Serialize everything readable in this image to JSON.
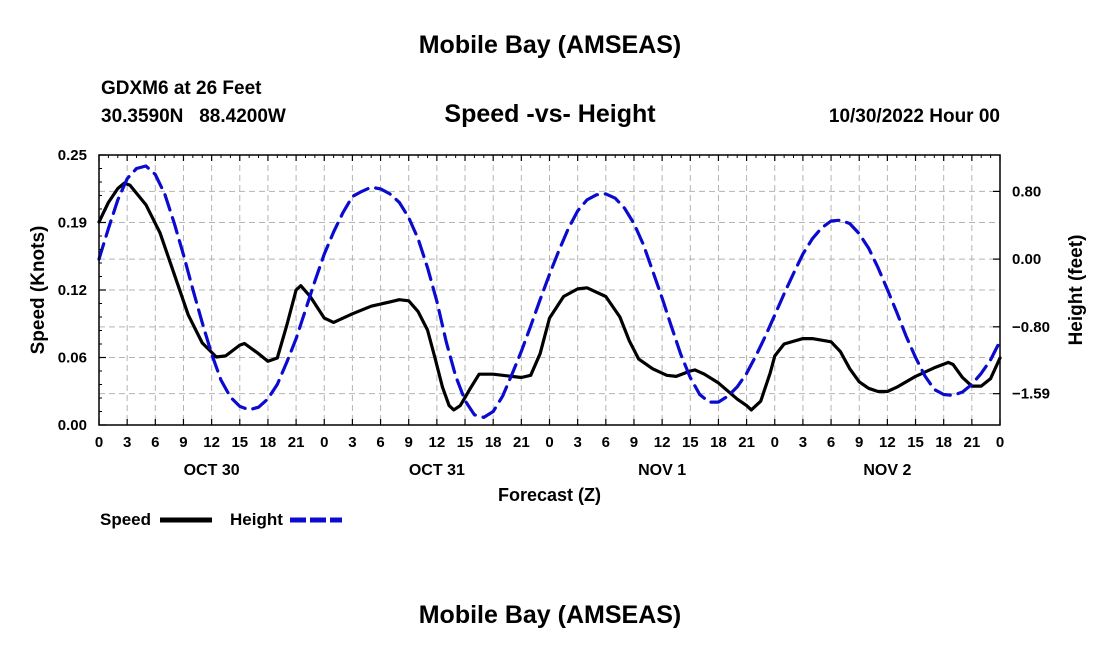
{
  "header": {
    "title": "Mobile Bay (AMSEAS)",
    "station": "GDXM6 at 26 Feet",
    "coords": "30.3590N   88.4200W",
    "subtitle": "Speed -vs- Height",
    "date": "10/30/2022 Hour 00"
  },
  "footer": {
    "title": "Mobile Bay (AMSEAS)"
  },
  "chart_data": {
    "type": "line",
    "title": "Speed -vs- Height",
    "xlabel": "Forecast (Z)",
    "ylabel": "Speed (Knots)",
    "ylabel_right": "Height (feet)",
    "xlim": [
      0,
      96
    ],
    "ylim": [
      0,
      0.25
    ],
    "ylim_right": [
      -1.96,
      1.23
    ],
    "grid": true,
    "x_ticks": [
      0,
      3,
      6,
      9,
      12,
      15,
      18,
      21,
      24,
      27,
      30,
      33,
      36,
      39,
      42,
      45,
      48,
      51,
      54,
      57,
      60,
      63,
      66,
      69,
      72,
      75,
      78,
      81,
      84,
      87,
      90,
      93,
      96
    ],
    "x_tick_labels": [
      "0",
      "3",
      "6",
      "9",
      "12",
      "15",
      "18",
      "21",
      "0",
      "3",
      "6",
      "9",
      "12",
      "15",
      "18",
      "21",
      "0",
      "3",
      "6",
      "9",
      "12",
      "15",
      "18",
      "21",
      "0",
      "3",
      "6",
      "9",
      "12",
      "15",
      "18",
      "21",
      "0"
    ],
    "day_labels": [
      {
        "x": 12,
        "label": "OCT 30"
      },
      {
        "x": 36,
        "label": "OCT 31"
      },
      {
        "x": 60,
        "label": "NOV 1"
      },
      {
        "x": 84,
        "label": "NOV 2"
      }
    ],
    "y_ticks_left": [
      {
        "value": 0,
        "label": "0.00"
      },
      {
        "value": 0.0625,
        "label": "0.06"
      },
      {
        "value": 0.125,
        "label": "0.12"
      },
      {
        "value": 0.1875,
        "label": "0.19"
      },
      {
        "value": 0.25,
        "label": "0.25"
      }
    ],
    "y_ticks_right": [
      {
        "value": 0.8,
        "label": "0.80"
      },
      {
        "value": 0.0,
        "label": "0.00"
      },
      {
        "value": -0.8,
        "label": "−0.80"
      },
      {
        "value": -1.59,
        "label": "−1.59"
      }
    ],
    "legend": {
      "placement": "bottom-left",
      "speed_label": "Speed",
      "height_label": "Height"
    },
    "series": [
      {
        "name": "Speed",
        "axis": "left",
        "color": "#000000",
        "dash": "solid",
        "points": [
          [
            0,
            0.188
          ],
          [
            1,
            0.206
          ],
          [
            2,
            0.219
          ],
          [
            2.7,
            0.224
          ],
          [
            3.3,
            0.222
          ],
          [
            5,
            0.204
          ],
          [
            6.5,
            0.178
          ],
          [
            8,
            0.14
          ],
          [
            9.5,
            0.102
          ],
          [
            11,
            0.076
          ],
          [
            12.5,
            0.063
          ],
          [
            13.5,
            0.064
          ],
          [
            15,
            0.074
          ],
          [
            15.5,
            0.0755
          ],
          [
            17,
            0.066
          ],
          [
            18,
            0.059
          ],
          [
            19,
            0.062
          ],
          [
            20,
            0.092
          ],
          [
            21,
            0.125
          ],
          [
            21.5,
            0.129
          ],
          [
            22.5,
            0.119
          ],
          [
            24,
            0.099
          ],
          [
            25,
            0.095
          ],
          [
            27,
            0.103
          ],
          [
            29,
            0.11
          ],
          [
            31,
            0.114
          ],
          [
            32,
            0.116
          ],
          [
            33,
            0.115
          ],
          [
            34,
            0.105
          ],
          [
            35,
            0.088
          ],
          [
            35.8,
            0.062
          ],
          [
            36.6,
            0.035
          ],
          [
            37.3,
            0.018
          ],
          [
            37.8,
            0.014
          ],
          [
            38.5,
            0.018
          ],
          [
            39.5,
            0.033
          ],
          [
            40.5,
            0.047
          ],
          [
            42,
            0.047
          ],
          [
            44,
            0.045
          ],
          [
            45,
            0.044
          ],
          [
            46,
            0.046
          ],
          [
            47,
            0.066
          ],
          [
            48,
            0.099
          ],
          [
            49.5,
            0.119
          ],
          [
            51,
            0.126
          ],
          [
            52,
            0.127
          ],
          [
            54,
            0.119
          ],
          [
            55.5,
            0.1
          ],
          [
            56.5,
            0.078
          ],
          [
            57.5,
            0.061
          ],
          [
            59,
            0.052
          ],
          [
            60.5,
            0.046
          ],
          [
            61.5,
            0.045
          ],
          [
            63,
            0.05
          ],
          [
            63.5,
            0.051
          ],
          [
            64.5,
            0.047
          ],
          [
            66,
            0.039
          ],
          [
            68,
            0.024
          ],
          [
            69,
            0.018
          ],
          [
            69.5,
            0.014
          ],
          [
            70.5,
            0.022
          ],
          [
            71.5,
            0.048
          ],
          [
            72,
            0.064
          ],
          [
            73,
            0.075
          ],
          [
            75,
            0.08
          ],
          [
            76,
            0.08
          ],
          [
            78,
            0.077
          ],
          [
            79,
            0.068
          ],
          [
            80,
            0.052
          ],
          [
            81,
            0.04
          ],
          [
            82,
            0.034
          ],
          [
            83,
            0.031
          ],
          [
            84,
            0.031
          ],
          [
            85,
            0.035
          ],
          [
            87,
            0.045
          ],
          [
            89,
            0.053
          ],
          [
            90.5,
            0.058
          ],
          [
            91,
            0.056
          ],
          [
            92,
            0.044
          ],
          [
            93,
            0.036
          ],
          [
            94,
            0.036
          ],
          [
            95,
            0.043
          ],
          [
            96,
            0.062
          ]
        ]
      },
      {
        "name": "Height",
        "axis": "right",
        "color": "#0b0bd0",
        "dash": "dashed",
        "points": [
          [
            0,
            0.0
          ],
          [
            1,
            0.36
          ],
          [
            2,
            0.7
          ],
          [
            3,
            0.95
          ],
          [
            4,
            1.07
          ],
          [
            5,
            1.1
          ],
          [
            6,
            1.0
          ],
          [
            7,
            0.77
          ],
          [
            8,
            0.43
          ],
          [
            9,
            0.05
          ],
          [
            10,
            -0.36
          ],
          [
            11,
            -0.75
          ],
          [
            12,
            -1.12
          ],
          [
            13,
            -1.43
          ],
          [
            14,
            -1.63
          ],
          [
            15,
            -1.74
          ],
          [
            16,
            -1.78
          ],
          [
            17,
            -1.75
          ],
          [
            18,
            -1.65
          ],
          [
            19,
            -1.48
          ],
          [
            20,
            -1.22
          ],
          [
            21,
            -0.94
          ],
          [
            22,
            -0.6
          ],
          [
            23,
            -0.26
          ],
          [
            24,
            0.06
          ],
          [
            25,
            0.32
          ],
          [
            26,
            0.55
          ],
          [
            27,
            0.74
          ],
          [
            28,
            0.8
          ],
          [
            29,
            0.85
          ],
          [
            30,
            0.83
          ],
          [
            31,
            0.77
          ],
          [
            32,
            0.67
          ],
          [
            33,
            0.49
          ],
          [
            34,
            0.24
          ],
          [
            35,
            -0.1
          ],
          [
            36,
            -0.5
          ],
          [
            37,
            -0.98
          ],
          [
            38,
            -1.38
          ],
          [
            39,
            -1.67
          ],
          [
            40,
            -1.84
          ],
          [
            41,
            -1.87
          ],
          [
            42,
            -1.8
          ],
          [
            43,
            -1.62
          ],
          [
            44,
            -1.36
          ],
          [
            45,
            -1.09
          ],
          [
            46,
            -0.79
          ],
          [
            47,
            -0.48
          ],
          [
            48,
            -0.18
          ],
          [
            49,
            0.1
          ],
          [
            50,
            0.36
          ],
          [
            51,
            0.57
          ],
          [
            52,
            0.7
          ],
          [
            53,
            0.76
          ],
          [
            54,
            0.77
          ],
          [
            55,
            0.72
          ],
          [
            56,
            0.6
          ],
          [
            57,
            0.42
          ],
          [
            58,
            0.17
          ],
          [
            59,
            -0.14
          ],
          [
            60,
            -0.46
          ],
          [
            61,
            -0.8
          ],
          [
            62,
            -1.13
          ],
          [
            63,
            -1.4
          ],
          [
            64,
            -1.6
          ],
          [
            65,
            -1.69
          ],
          [
            66,
            -1.69
          ],
          [
            67,
            -1.62
          ],
          [
            68,
            -1.51
          ],
          [
            69,
            -1.35
          ],
          [
            70,
            -1.14
          ],
          [
            71,
            -0.91
          ],
          [
            72,
            -0.66
          ],
          [
            73,
            -0.41
          ],
          [
            74,
            -0.17
          ],
          [
            75,
            0.06
          ],
          [
            76,
            0.24
          ],
          [
            77,
            0.37
          ],
          [
            78,
            0.45
          ],
          [
            79,
            0.46
          ],
          [
            80,
            0.42
          ],
          [
            81,
            0.3
          ],
          [
            82,
            0.13
          ],
          [
            83,
            -0.1
          ],
          [
            84,
            -0.36
          ],
          [
            85,
            -0.63
          ],
          [
            86,
            -0.91
          ],
          [
            87,
            -1.16
          ],
          [
            88,
            -1.38
          ],
          [
            89,
            -1.54
          ],
          [
            90,
            -1.6
          ],
          [
            91,
            -1.61
          ],
          [
            92,
            -1.57
          ],
          [
            93,
            -1.48
          ],
          [
            94,
            -1.35
          ],
          [
            95,
            -1.19
          ],
          [
            96,
            -0.97
          ]
        ]
      }
    ]
  }
}
